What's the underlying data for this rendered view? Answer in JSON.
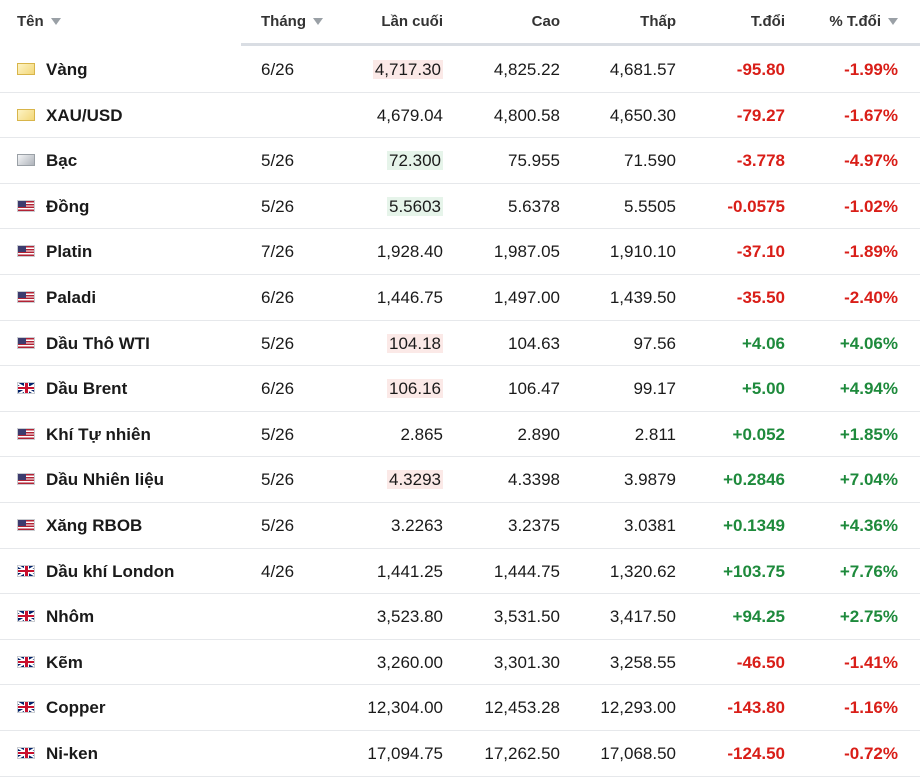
{
  "table": {
    "columns": {
      "name": "Tên",
      "month": "Tháng",
      "last": "Lần cuối",
      "high": "Cao",
      "low": "Thấp",
      "change": "T.đổi",
      "change_pct": "% T.đổi"
    },
    "rows": [
      {
        "name": "Vàng",
        "flag": "gold-icon",
        "month": "6/26",
        "last": "4,717.30",
        "last_highlight": "down",
        "high": "4,825.22",
        "low": "4,681.57",
        "change": "-95.80",
        "change_pct": "-1.99%",
        "direction": "down"
      },
      {
        "name": "XAU/USD",
        "flag": "gold-icon",
        "month": "",
        "last": "4,679.04",
        "last_highlight": "none",
        "high": "4,800.58",
        "low": "4,650.30",
        "change": "-79.27",
        "change_pct": "-1.67%",
        "direction": "down"
      },
      {
        "name": "Bạc",
        "flag": "silver-icon",
        "month": "5/26",
        "last": "72.300",
        "last_highlight": "up",
        "high": "75.955",
        "low": "71.590",
        "change": "-3.778",
        "change_pct": "-4.97%",
        "direction": "down"
      },
      {
        "name": "Đồng",
        "flag": "us-flag-icon",
        "month": "5/26",
        "last": "5.5603",
        "last_highlight": "up",
        "high": "5.6378",
        "low": "5.5505",
        "change": "-0.0575",
        "change_pct": "-1.02%",
        "direction": "down"
      },
      {
        "name": "Platin",
        "flag": "us-flag-icon",
        "month": "7/26",
        "last": "1,928.40",
        "last_highlight": "none",
        "high": "1,987.05",
        "low": "1,910.10",
        "change": "-37.10",
        "change_pct": "-1.89%",
        "direction": "down"
      },
      {
        "name": "Paladi",
        "flag": "us-flag-icon",
        "month": "6/26",
        "last": "1,446.75",
        "last_highlight": "none",
        "high": "1,497.00",
        "low": "1,439.50",
        "change": "-35.50",
        "change_pct": "-2.40%",
        "direction": "down"
      },
      {
        "name": "Dầu Thô WTI",
        "flag": "us-flag-icon",
        "month": "5/26",
        "last": "104.18",
        "last_highlight": "down",
        "high": "104.63",
        "low": "97.56",
        "change": "+4.06",
        "change_pct": "+4.06%",
        "direction": "up"
      },
      {
        "name": "Dầu Brent",
        "flag": "uk-flag-icon",
        "month": "6/26",
        "last": "106.16",
        "last_highlight": "down",
        "high": "106.47",
        "low": "99.17",
        "change": "+5.00",
        "change_pct": "+4.94%",
        "direction": "up"
      },
      {
        "name": "Khí Tự nhiên",
        "flag": "us-flag-icon",
        "month": "5/26",
        "last": "2.865",
        "last_highlight": "none",
        "high": "2.890",
        "low": "2.811",
        "change": "+0.052",
        "change_pct": "+1.85%",
        "direction": "up"
      },
      {
        "name": "Dầu Nhiên liệu",
        "flag": "us-flag-icon",
        "month": "5/26",
        "last": "4.3293",
        "last_highlight": "down",
        "high": "4.3398",
        "low": "3.9879",
        "change": "+0.2846",
        "change_pct": "+7.04%",
        "direction": "up"
      },
      {
        "name": "Xăng RBOB",
        "flag": "us-flag-icon",
        "month": "5/26",
        "last": "3.2263",
        "last_highlight": "none",
        "high": "3.2375",
        "low": "3.0381",
        "change": "+0.1349",
        "change_pct": "+4.36%",
        "direction": "up"
      },
      {
        "name": "Dầu khí London",
        "flag": "uk-flag-icon",
        "month": "4/26",
        "last": "1,441.25",
        "last_highlight": "none",
        "high": "1,444.75",
        "low": "1,320.62",
        "change": "+103.75",
        "change_pct": "+7.76%",
        "direction": "up"
      },
      {
        "name": "Nhôm",
        "flag": "uk-flag-icon",
        "month": "",
        "last": "3,523.80",
        "last_highlight": "none",
        "high": "3,531.50",
        "low": "3,417.50",
        "change": "+94.25",
        "change_pct": "+2.75%",
        "direction": "up"
      },
      {
        "name": "Kẽm",
        "flag": "uk-flag-icon",
        "month": "",
        "last": "3,260.00",
        "last_highlight": "none",
        "high": "3,301.30",
        "low": "3,258.55",
        "change": "-46.50",
        "change_pct": "-1.41%",
        "direction": "down"
      },
      {
        "name": "Copper",
        "flag": "uk-flag-icon",
        "month": "",
        "last": "12,304.00",
        "last_highlight": "none",
        "high": "12,453.28",
        "low": "12,293.00",
        "change": "-143.80",
        "change_pct": "-1.16%",
        "direction": "down"
      },
      {
        "name": "Ni-ken",
        "flag": "uk-flag-icon",
        "month": "",
        "last": "17,094.75",
        "last_highlight": "none",
        "high": "17,262.50",
        "low": "17,068.50",
        "change": "-124.50",
        "change_pct": "-0.72%",
        "direction": "down"
      }
    ]
  },
  "colors": {
    "negative": "#d91e18",
    "positive": "#1e8a3c",
    "highlight_down": "#fbe9e7",
    "highlight_up": "#e6f4ea"
  }
}
